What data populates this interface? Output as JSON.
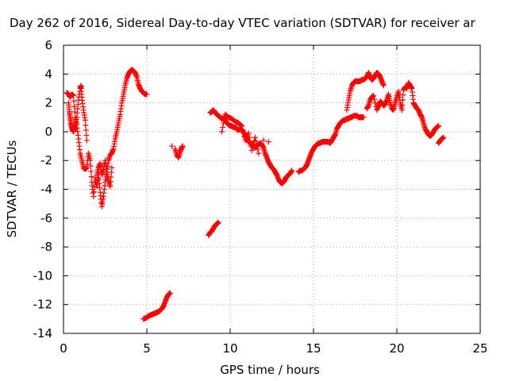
{
  "chart_data": {
    "type": "scatter",
    "title": "Day 262 of 2016, Sidereal Day-to-day VTEC variation (SDTVAR) for receiver ar",
    "xlabel": "GPS time / hours",
    "ylabel": "SDTVAR / TECUs",
    "xlim": [
      0,
      25
    ],
    "ylim": [
      -14,
      6
    ],
    "xticks": [
      0,
      5,
      10,
      15,
      20,
      25
    ],
    "yticks": [
      -14,
      -12,
      -10,
      -8,
      -6,
      -4,
      -2,
      0,
      2,
      4,
      6
    ],
    "grid": true,
    "marker": "+",
    "color": "#ff0000",
    "series": [
      {
        "name": "segment-1",
        "x": [
          0.2,
          0.3,
          0.4,
          0.5,
          0.6,
          0.7,
          0.8,
          0.9,
          1.0,
          1.1,
          1.2,
          1.3,
          1.4,
          1.5,
          1.6,
          1.7,
          1.8,
          1.9,
          2.0,
          2.1,
          2.2,
          2.3,
          2.4,
          2.5,
          2.6,
          2.7,
          2.8,
          2.9,
          3.0,
          3.1,
          3.2,
          3.3,
          3.4,
          3.5,
          3.6,
          3.7,
          3.8,
          3.9,
          4.0,
          4.1,
          4.2,
          4.3,
          4.4,
          4.5,
          4.6,
          4.7,
          4.8,
          4.9,
          5.0
        ],
        "y": [
          2.7,
          2.6,
          2.4,
          2.6,
          2.5,
          1.0,
          0.5,
          -0.5,
          -1.5,
          -2.0,
          -2.5,
          -2.6,
          -2.5,
          -1.5,
          -2.0,
          -3.5,
          -4.5,
          -3.2,
          -3.8,
          -3.0,
          -4.2,
          -5.2,
          -4.5,
          -3.5,
          -2.8,
          -2.0,
          -1.6,
          -1.5,
          -1.2,
          -0.5,
          0.0,
          0.6,
          1.2,
          2.0,
          2.6,
          3.2,
          3.7,
          4.0,
          4.2,
          4.3,
          4.2,
          4.1,
          3.8,
          3.3,
          3.0,
          2.8,
          2.7,
          2.6,
          2.6
        ]
      },
      {
        "name": "segment-1b",
        "x": [
          0.3,
          0.35,
          0.4,
          0.45,
          0.5,
          0.55,
          0.6,
          0.65,
          0.7,
          0.8,
          0.9,
          1.0,
          1.05,
          1.1,
          1.2,
          1.3,
          1.4,
          2.0,
          2.1,
          2.2,
          2.3,
          2.4,
          2.5,
          2.6,
          2.7,
          2.8,
          2.9
        ],
        "y": [
          2.0,
          1.4,
          1.0,
          0.6,
          0.3,
          0.1,
          0.0,
          0.2,
          0.4,
          1.0,
          2.2,
          3.0,
          3.2,
          2.4,
          1.5,
          0.8,
          -0.6,
          -3.0,
          -2.5,
          -2.2,
          -3.0,
          -2.6,
          -2.0,
          -2.8,
          -3.4,
          -3.8,
          -2.5
        ]
      },
      {
        "name": "segment-2",
        "x": [
          4.8,
          4.9,
          5.0,
          5.1,
          5.2,
          5.3,
          5.4,
          5.5,
          5.6,
          5.7,
          5.8,
          5.9,
          6.0,
          6.1,
          6.2,
          6.3,
          6.4
        ],
        "y": [
          -13.0,
          -12.95,
          -12.9,
          -12.8,
          -12.75,
          -12.7,
          -12.65,
          -12.6,
          -12.55,
          -12.5,
          -12.4,
          -12.3,
          -12.1,
          -11.8,
          -11.5,
          -11.3,
          -11.2
        ]
      },
      {
        "name": "segment-3",
        "x": [
          6.7,
          6.8,
          6.9,
          7.0,
          7.1,
          7.15,
          6.5
        ],
        "y": [
          -1.2,
          -1.6,
          -1.8,
          -1.4,
          -1.1,
          -1.0,
          -1.0
        ]
      },
      {
        "name": "segment-4",
        "x": [
          8.7,
          8.8,
          8.9,
          9.0,
          9.1,
          9.2,
          9.3
        ],
        "y": [
          -7.2,
          -7.0,
          -6.9,
          -6.7,
          -6.5,
          -6.4,
          -6.3
        ]
      },
      {
        "name": "segment-5",
        "x": [
          8.8,
          8.9,
          9.0,
          9.1,
          9.2,
          9.3,
          9.4,
          9.5,
          9.6,
          9.7,
          9.8,
          9.9,
          10.0,
          10.1,
          10.2,
          10.3,
          10.4,
          10.5,
          10.6,
          10.7,
          10.8,
          10.9,
          11.0,
          11.1,
          11.2,
          11.3,
          11.4,
          11.5,
          11.6,
          11.7,
          11.8,
          11.9,
          12.0,
          12.1,
          12.2,
          12.3,
          12.4,
          12.5,
          12.6,
          12.7,
          12.8,
          12.9,
          13.0,
          13.1,
          13.2,
          13.3,
          13.4,
          13.5,
          13.6,
          13.7
        ],
        "y": [
          1.3,
          1.4,
          1.5,
          1.3,
          1.2,
          1.1,
          1.0,
          0.9,
          0.9,
          0.8,
          0.6,
          0.5,
          0.4,
          0.4,
          0.3,
          0.3,
          0.2,
          0.1,
          0.2,
          0.1,
          0.0,
          -0.3,
          -0.5,
          -0.7,
          -0.8,
          -0.9,
          -1.0,
          -1.1,
          -1.0,
          -0.9,
          -0.8,
          -0.9,
          -1.1,
          -1.5,
          -1.8,
          -2.1,
          -2.3,
          -2.5,
          -2.6,
          -2.8,
          -3.0,
          -3.3,
          -3.5,
          -3.6,
          -3.5,
          -3.3,
          -3.1,
          -3.0,
          -2.9,
          -2.7
        ]
      },
      {
        "name": "segment-5b",
        "x": [
          9.5,
          9.7,
          9.9,
          10.1,
          10.3,
          10.5,
          10.7,
          10.9,
          11.1,
          11.3,
          11.5,
          11.7,
          12.0,
          12.3
        ],
        "y": [
          0.0,
          1.2,
          1.0,
          0.9,
          0.7,
          0.6,
          0.4,
          -0.6,
          -0.1,
          -1.3,
          -0.4,
          -1.5,
          -0.6,
          -0.7
        ]
      },
      {
        "name": "segment-6",
        "x": [
          14.1,
          14.2,
          14.3,
          14.4,
          14.5,
          14.6,
          14.7,
          14.8,
          14.9,
          15.0,
          15.1,
          15.2,
          15.3,
          15.4,
          15.5,
          15.6,
          15.7,
          15.8,
          15.9,
          16.0,
          16.1,
          16.2,
          16.3,
          16.4,
          16.5,
          16.6,
          16.7,
          16.8,
          16.9,
          17.0,
          17.1,
          17.2,
          17.3,
          17.4,
          17.5,
          17.6,
          17.7,
          17.8,
          17.9,
          18.0
        ],
        "y": [
          -2.8,
          -2.7,
          -2.7,
          -2.6,
          -2.5,
          -2.3,
          -2.0,
          -1.7,
          -1.4,
          -1.2,
          -1.0,
          -0.9,
          -0.8,
          -0.8,
          -0.7,
          -0.7,
          -0.7,
          -0.7,
          -0.7,
          -0.8,
          -0.6,
          -0.4,
          -0.2,
          0.2,
          0.4,
          0.6,
          0.7,
          0.8,
          0.8,
          0.9,
          0.9,
          1.0,
          1.0,
          1.1,
          1.1,
          1.1,
          1.0,
          1.0,
          1.0,
          1.0
        ]
      },
      {
        "name": "segment-7",
        "x": [
          17.0,
          17.1,
          17.2,
          17.3,
          17.4,
          17.5,
          17.6,
          17.7,
          17.8,
          17.9,
          18.0,
          18.1,
          18.2,
          18.3,
          18.4,
          18.5,
          18.6,
          18.7,
          18.8,
          18.9,
          19.0,
          19.1,
          19.2
        ],
        "y": [
          1.5,
          2.2,
          2.8,
          3.2,
          3.4,
          3.5,
          3.5,
          3.5,
          3.5,
          3.6,
          3.6,
          3.7,
          3.8,
          4.1,
          3.8,
          3.6,
          3.7,
          3.9,
          4.1,
          4.0,
          3.8,
          3.5,
          3.2
        ]
      },
      {
        "name": "segment-8",
        "x": [
          18.2,
          18.3,
          18.4,
          18.5,
          18.6,
          18.8,
          18.9,
          19.0,
          19.1,
          19.2,
          19.3,
          19.4,
          19.5,
          19.6,
          19.7,
          19.8,
          19.9,
          20.0,
          20.1,
          20.2,
          20.3,
          20.4,
          20.5,
          20.6,
          20.7,
          20.8,
          20.9,
          21.0,
          21.1,
          21.2,
          21.3,
          21.4,
          21.5,
          21.6,
          21.7,
          21.8,
          21.9,
          22.0,
          22.1,
          22.2,
          22.3,
          22.4,
          22.5
        ],
        "y": [
          1.6,
          1.8,
          2.2,
          2.4,
          2.5,
          1.5,
          1.8,
          2.1,
          2.0,
          1.8,
          1.9,
          2.2,
          2.6,
          2.0,
          1.6,
          1.5,
          2.0,
          2.4,
          2.8,
          2.0,
          1.5,
          2.9,
          3.1,
          3.0,
          3.4,
          3.2,
          3.0,
          2.0,
          1.8,
          1.6,
          1.5,
          1.2,
          1.0,
          0.6,
          0.2,
          0.0,
          -0.2,
          -0.3,
          -0.2,
          0.0,
          0.2,
          0.3,
          0.4
        ]
      },
      {
        "name": "segment-9",
        "x": [
          22.5,
          22.6,
          22.7,
          22.8
        ],
        "y": [
          -0.8,
          -0.6,
          -0.5,
          -0.4
        ]
      }
    ]
  }
}
